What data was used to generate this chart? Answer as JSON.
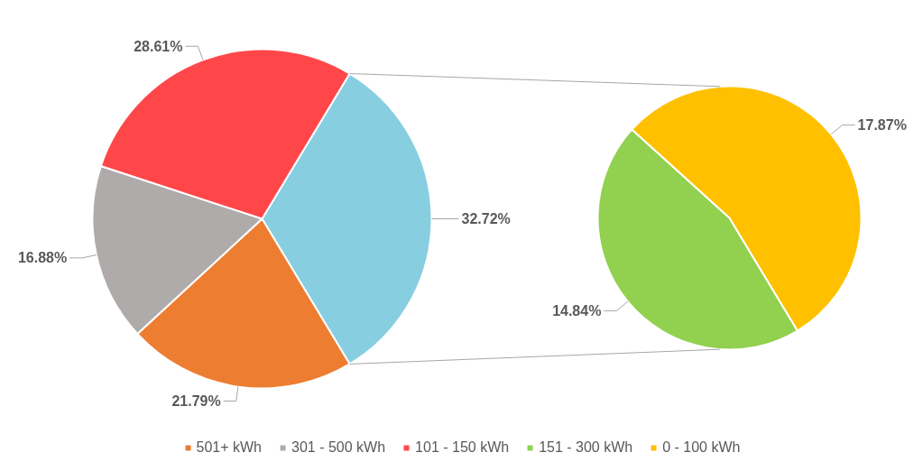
{
  "chart_data": [
    {
      "type": "pie",
      "categories": [
        "501+ kWh",
        "301 - 500 kWh",
        "101 - 150 kWh",
        null
      ],
      "values": [
        21.79,
        16.88,
        28.61,
        32.72
      ],
      "value_labels": [
        "21.79%",
        "16.88%",
        "28.61%",
        "32.72%"
      ],
      "colors": [
        "#ed7d31",
        "#afabab",
        "#ff474a",
        "#87cee0"
      ],
      "legend": "bottom"
    },
    {
      "type": "pie",
      "categories": [
        "151 - 300 kWh",
        "0 - 100 kWh"
      ],
      "values": [
        14.84,
        17.87
      ],
      "value_labels": [
        "14.84%",
        "17.87%"
      ],
      "colors": [
        "#92d050",
        "#ffc000"
      ],
      "legend": "bottom"
    }
  ]
}
